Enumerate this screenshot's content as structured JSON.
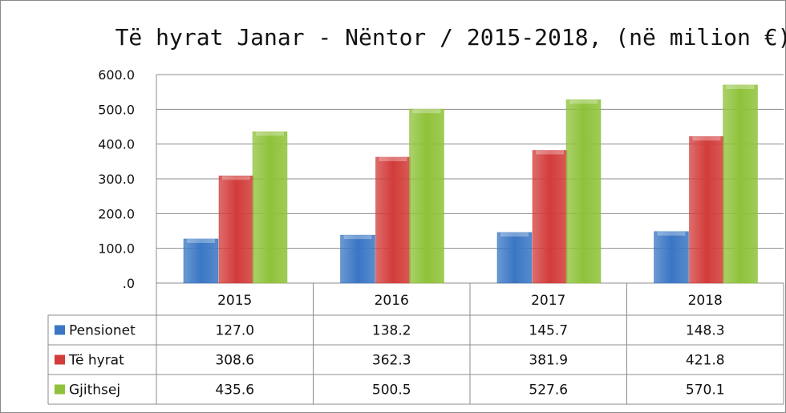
{
  "chart_data": {
    "type": "bar",
    "title": "Të hyrat  Janar - Nëntor  / 2015-2018, (në milion €)",
    "categories": [
      "2015",
      "2016",
      "2017",
      "2018"
    ],
    "series": [
      {
        "name": "Pensionet",
        "values": [
          127.0,
          138.2,
          145.7,
          148.3
        ],
        "color": "#3a76c4"
      },
      {
        "name": "Të hyrat",
        "values": [
          308.6,
          362.3,
          381.9,
          421.8
        ],
        "color": "#d23c3a"
      },
      {
        "name": "Gjithsej",
        "values": [
          435.6,
          500.5,
          527.6,
          570.1
        ],
        "color": "#8fc23a"
      }
    ],
    "ylim": [
      0,
      600
    ],
    "yticks": [
      ".0",
      "100.0",
      "200.0",
      "300.0",
      "400.0",
      "500.0",
      "600.0"
    ],
    "grid": true,
    "legend": "data-table",
    "data_table": true
  }
}
